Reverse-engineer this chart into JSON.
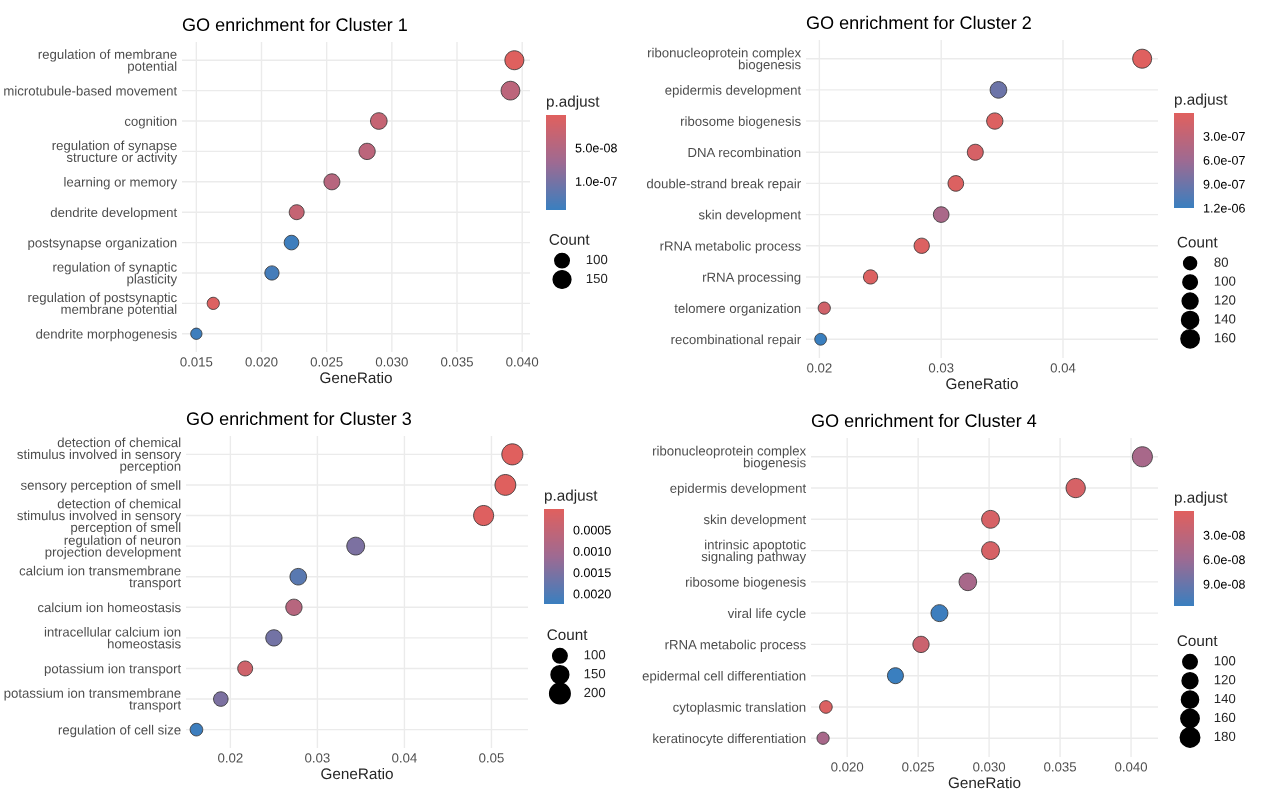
{
  "chart_data": [
    {
      "type": "bubble",
      "orientation": "horizontal",
      "title": "GO enrichment for Cluster 1",
      "xlabel": "GeneRatio",
      "clabel": "p.adjust",
      "legend_title": "Count",
      "grid": true,
      "categories": [
        "regulation of membrane\npotential",
        "microtubule-based movement",
        "cognition",
        "regulation of synapse\nstructure or activity",
        "learning or memory",
        "dendrite development",
        "postsynapse organization",
        "regulation of synaptic\nplasticity",
        "regulation of postsynaptic\nmembrane potential",
        "dendrite morphogenesis"
      ],
      "values": [
        0.0394,
        0.0391,
        0.029,
        0.0281,
        0.0254,
        0.0227,
        0.0223,
        0.0208,
        0.0163,
        0.015
      ],
      "sizes": [
        170,
        165,
        130,
        125,
        120,
        105,
        100,
        95,
        70,
        60
      ],
      "cvalues": [
        2e-09,
        4e-08,
        3e-08,
        4e-08,
        4.5e-08,
        3e-08,
        1.4e-07,
        1.35e-07,
        5e-09,
        1.4e-07
      ],
      "size_legend": [
        100,
        150
      ],
      "clim": [
        1e-09,
        1.43e-07
      ],
      "cticks": [
        {
          "value": 5e-08,
          "label": "5.0e-08"
        },
        {
          "value": 1e-07,
          "label": "1.0e-07"
        }
      ],
      "xlim": [
        0.0139,
        0.0406
      ],
      "xticks": [
        0.015,
        {
          "value": 0.02,
          "label": "0.020"
        },
        0.025,
        {
          "value": 0.03,
          "label": "0.030"
        },
        0.035,
        {
          "value": 0.04,
          "label": "0.040"
        }
      ]
    },
    {
      "type": "bubble",
      "orientation": "horizontal",
      "title": "GO enrichment for Cluster 2",
      "xlabel": "GeneRatio",
      "clabel": "p.adjust",
      "legend_title": "Count",
      "grid": true,
      "categories": [
        "ribonucleoprotein complex\nbiogenesis",
        "epidermis development",
        "ribosome biogenesis",
        "DNA recombination",
        "double-strand break repair",
        "skin development",
        "rRNA metabolic process",
        "rRNA processing",
        "telomere organization",
        "recombinational repair"
      ],
      "values": [
        0.0465,
        0.0347,
        0.0344,
        0.0328,
        0.0312,
        0.03,
        0.0284,
        0.0242,
        0.0204,
        0.0201
      ],
      "sizes": [
        170,
        130,
        125,
        120,
        115,
        115,
        110,
        95,
        70,
        65
      ],
      "cvalues": [
        2e-08,
        9e-07,
        5e-08,
        1e-07,
        5e-08,
        5e-07,
        5e-08,
        5e-08,
        1.5e-07,
        1.2e-06
      ],
      "size_legend": [
        80,
        100,
        120,
        140,
        160
      ],
      "clim": [
        1e-08,
        1.2e-06
      ],
      "cticks": [
        {
          "value": 3e-07,
          "label": "3.0e-07"
        },
        {
          "value": 6e-07,
          "label": "6.0e-07"
        },
        {
          "value": 9e-07,
          "label": "9.0e-07"
        },
        {
          "value": 1.2e-06,
          "label": "1.2e-06"
        }
      ],
      "xlim": [
        0.0189,
        0.0478
      ],
      "xticks": [
        0.02,
        0.03,
        0.04
      ]
    },
    {
      "type": "bubble",
      "orientation": "horizontal",
      "title": "GO enrichment for Cluster 3",
      "xlabel": "GeneRatio",
      "clabel": "p.adjust",
      "legend_title": "Count",
      "grid": true,
      "categories": [
        "detection of chemical\nstimulus involved in sensory\nperception",
        "sensory perception of smell",
        "detection of chemical\nstimulus involved in sensory\nperception of smell",
        "regulation of neuron\nprojection development",
        "calcium ion transmembrane\ntransport",
        "calcium ion homeostasis",
        "intracellular calcium ion\nhomeostasis",
        "potassium ion transport",
        "potassium ion transmembrane\ntransport",
        "regulation of cell size"
      ],
      "values": [
        0.0524,
        0.0516,
        0.0491,
        0.0344,
        0.0278,
        0.0273,
        0.025,
        0.0217,
        0.0189,
        0.0161
      ],
      "sizes": [
        210,
        205,
        190,
        150,
        130,
        125,
        125,
        105,
        100,
        75
      ],
      "cvalues": [
        1e-05,
        2e-05,
        5e-05,
        0.0015,
        0.0019,
        0.0007,
        0.0016,
        0.0003,
        0.0015,
        0.0022
      ],
      "size_legend": [
        100,
        150,
        200
      ],
      "clim": [
        1e-05,
        0.00224
      ],
      "cticks": [
        0.0005,
        {
          "value": 0.001,
          "label": "0.0010"
        },
        0.0015,
        {
          "value": 0.002,
          "label": "0.0020"
        }
      ],
      "xlim": [
        0.0149,
        0.0542
      ],
      "xticks": [
        0.02,
        0.03,
        0.04,
        0.05
      ]
    },
    {
      "type": "bubble",
      "orientation": "horizontal",
      "title": "GO enrichment for Cluster 4",
      "xlabel": "GeneRatio",
      "clabel": "p.adjust",
      "legend_title": "Count",
      "grid": true,
      "categories": [
        "ribonucleoprotein complex\nbiogenesis",
        "epidermis development",
        "skin development",
        "intrinsic apoptotic\nsignaling pathway",
        "ribosome biogenesis",
        "viral life cycle",
        "rRNA metabolic process",
        "epidermal cell differentiation",
        "cytoplasmic translation",
        "keratinocyte differentiation"
      ],
      "values": [
        0.0408,
        0.0361,
        0.0301,
        0.0301,
        0.0285,
        0.0265,
        0.0252,
        0.0234,
        0.0185,
        0.0183
      ],
      "sizes": [
        190,
        175,
        150,
        150,
        145,
        135,
        125,
        120,
        75,
        70
      ],
      "cvalues": [
        5e-08,
        1e-08,
        1e-08,
        1e-08,
        5e-08,
        1.15e-07,
        2e-08,
        1.17e-07,
        5e-09,
        5e-08
      ],
      "size_legend": [
        100,
        120,
        140,
        160,
        180
      ],
      "clim": [
        5e-10,
        1.17e-07
      ],
      "cticks": [
        {
          "value": 3e-08,
          "label": "3.0e-08"
        },
        {
          "value": 6e-08,
          "label": "6.0e-08"
        },
        {
          "value": 9e-08,
          "label": "9.0e-08"
        }
      ],
      "xlim": [
        0.01745,
        0.0419
      ],
      "xticks": [
        {
          "value": 0.02,
          "label": "0.020"
        },
        0.025,
        {
          "value": 0.03,
          "label": "0.030"
        },
        0.035,
        {
          "value": 0.04,
          "label": "0.040"
        }
      ]
    }
  ]
}
